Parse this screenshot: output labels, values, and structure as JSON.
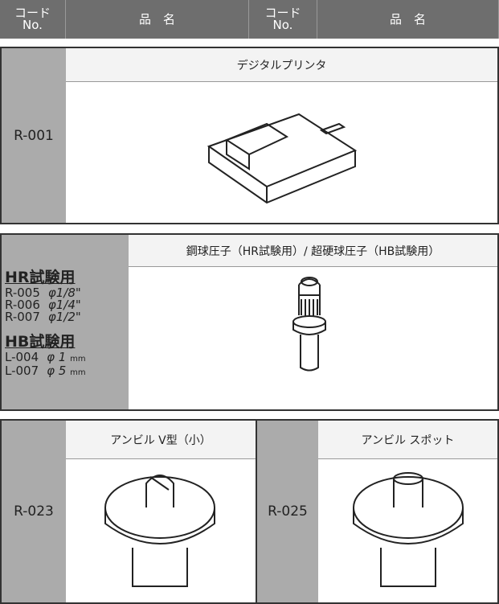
{
  "header": {
    "cells": [
      {
        "line1": "コード",
        "line2": "No."
      },
      {
        "text": "品　名"
      },
      {
        "line1": "コード",
        "line2": "No."
      },
      {
        "text": "品　名"
      }
    ]
  },
  "items": [
    {
      "code": "R-001",
      "name": "デジタルプリンタ"
    },
    {
      "name": "鋼球圧子（HR試験用）/ 超硬球圧子（HB試験用）",
      "groups": [
        {
          "title": "HR試験用",
          "entries": [
            {
              "code": "R-005",
              "size": "φ1/8\""
            },
            {
              "code": "R-006",
              "size": "φ1/4\""
            },
            {
              "code": "R-007",
              "size": "φ1/2\""
            }
          ]
        },
        {
          "title": "HB試験用",
          "entries": [
            {
              "code": "L-004",
              "size": "φ 1",
              "unit": "mm"
            },
            {
              "code": "L-007",
              "size": "φ 5",
              "unit": "mm"
            }
          ]
        }
      ]
    },
    {
      "code": "R-023",
      "name": "アンビル V型（小）"
    },
    {
      "code": "R-025",
      "name": "アンビル スポット"
    }
  ]
}
